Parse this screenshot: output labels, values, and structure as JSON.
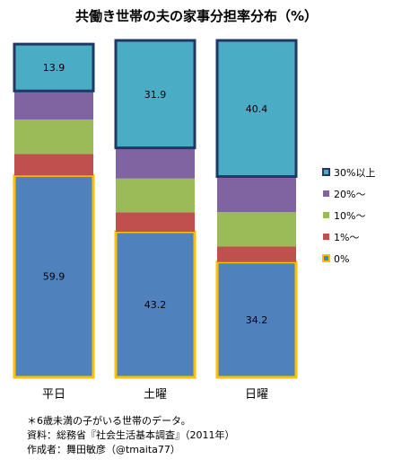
{
  "chart_data": {
    "type": "bar",
    "stacked": true,
    "title": "共働き世帯の夫の家事分担率分布（%）",
    "categories": [
      "平日",
      "土曜",
      "日曜"
    ],
    "ylim": [
      0,
      100
    ],
    "series": [
      {
        "name": "0%",
        "values": [
          59.9,
          43.2,
          34.2
        ],
        "color": "#4f81bd",
        "border": "#ffc000"
      },
      {
        "name": "1%～",
        "values": [
          6.4,
          5.8,
          4.6
        ],
        "color": "#c0504d"
      },
      {
        "name": "10%～",
        "values": [
          10.2,
          10.0,
          10.2
        ],
        "color": "#9bbb59"
      },
      {
        "name": "20%～",
        "values": [
          8.5,
          9.1,
          10.6
        ],
        "color": "#8064a2"
      },
      {
        "name": "30%以上",
        "values": [
          13.9,
          31.9,
          40.4
        ],
        "color": "#4bacc6",
        "border": "#1f3864"
      }
    ],
    "data_labels": {
      "0%": [
        "59.9",
        "43.2",
        "34.2"
      ],
      "30%以上": [
        "13.9",
        "31.9",
        "40.4"
      ]
    },
    "legend_position": "right",
    "grid": false
  },
  "notes": [
    "＊6歳未満の子がいる世帯のデータ。",
    "資料：総務省『社会生活基本調査』（2011年）",
    "作成者：舞田敏彦（@tmaita77）"
  ]
}
